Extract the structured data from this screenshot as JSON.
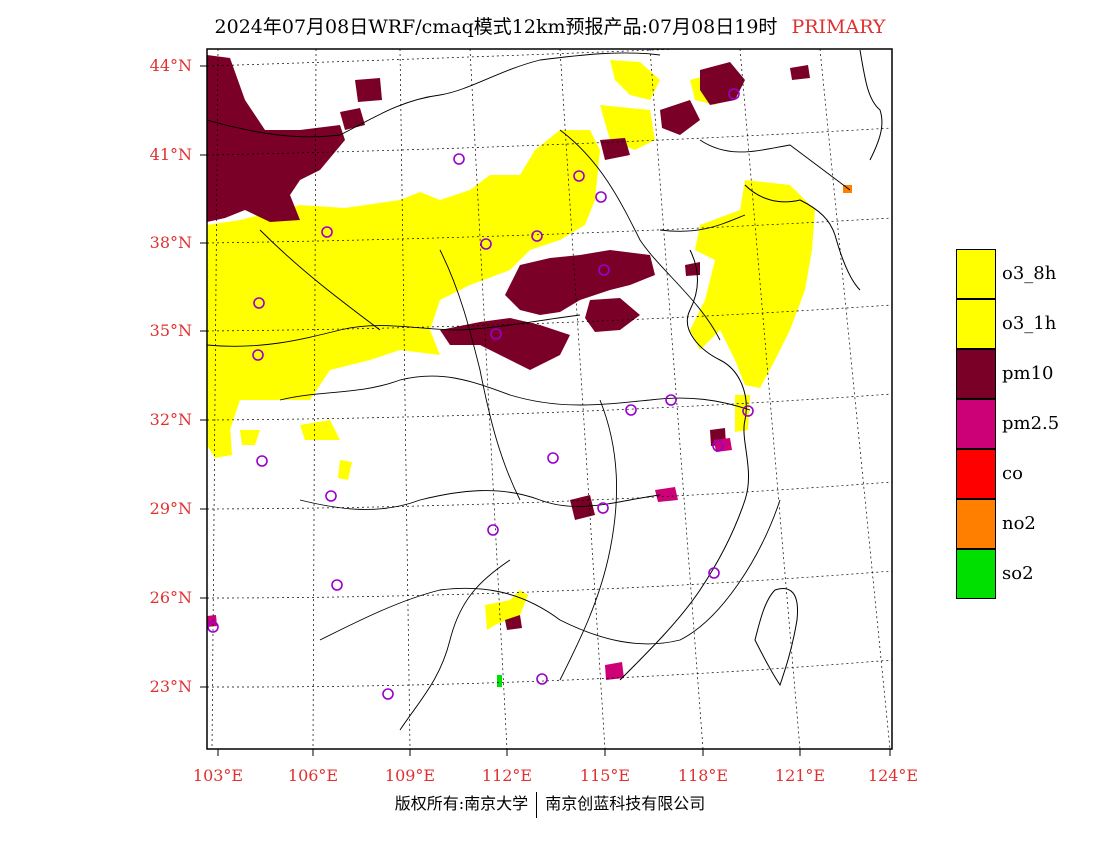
{
  "header": {
    "title": "2024年07月08日WRF/cmaq模式12km预报产品:07月08日19时",
    "tag": "PRIMARY"
  },
  "map": {
    "lat_labels": [
      "44°N",
      "41°N",
      "38°N",
      "35°N",
      "32°N",
      "29°N",
      "26°N",
      "23°N"
    ],
    "lon_labels": [
      "103°E",
      "106°E",
      "109°E",
      "112°E",
      "115°E",
      "118°E",
      "121°E",
      "124°E"
    ],
    "pollutant_colors": {
      "o3_8h": "#ffff00",
      "o3_1h": "#ffff00",
      "pm10": "#7b0028",
      "pm2.5": "#cc0077",
      "co": "#ff0000",
      "no2": "#ff7f00",
      "so2": "#00e000"
    },
    "station_marker_color": "#9900cc"
  },
  "legend": {
    "items": [
      {
        "label": "o3_8h",
        "color": "#ffff00"
      },
      {
        "label": "o3_1h",
        "color": "#ffff00"
      },
      {
        "label": "pm10",
        "color": "#7b0028"
      },
      {
        "label": "pm2.5",
        "color": "#cc0077"
      },
      {
        "label": "co",
        "color": "#ff0000"
      },
      {
        "label": "no2",
        "color": "#ff7f00"
      },
      {
        "label": "so2",
        "color": "#00e000"
      }
    ]
  },
  "footer": {
    "left": "版权所有:南京大学",
    "right": "南京创蓝科技有限公司"
  }
}
